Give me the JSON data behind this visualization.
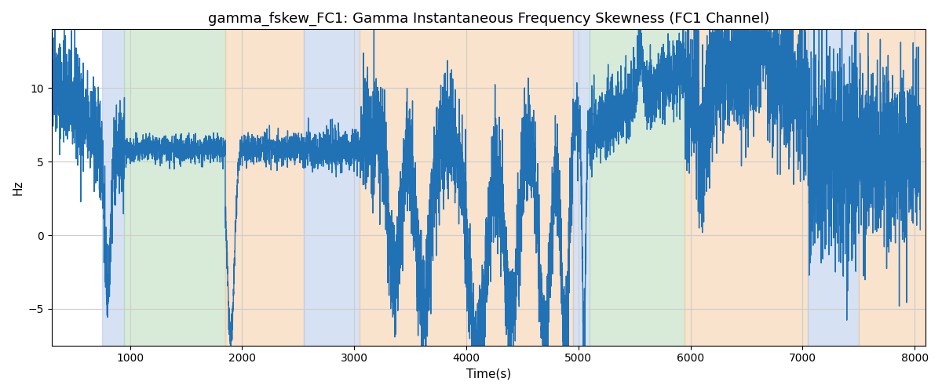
{
  "title": "gamma_fskew_FC1: Gamma Instantaneous Frequency Skewness (FC1 Channel)",
  "xlabel": "Time(s)",
  "ylabel": "Hz",
  "xlim": [
    300,
    8100
  ],
  "ylim": [
    -7.5,
    14
  ],
  "xticks": [
    1000,
    2000,
    3000,
    4000,
    5000,
    6000,
    7000,
    8000
  ],
  "yticks": [
    -5,
    0,
    5,
    10
  ],
  "line_color": "#2171b5",
  "line_width": 1.0,
  "background_color": "#ffffff",
  "grid_color": "#cccccc",
  "bands": [
    {
      "xmin": 750,
      "xmax": 950,
      "color": "#aec6e8",
      "alpha": 0.5
    },
    {
      "xmin": 950,
      "xmax": 1850,
      "color": "#b2d8b2",
      "alpha": 0.5
    },
    {
      "xmin": 1850,
      "xmax": 2550,
      "color": "#f5c99a",
      "alpha": 0.5
    },
    {
      "xmin": 2550,
      "xmax": 3050,
      "color": "#aec6e8",
      "alpha": 0.5
    },
    {
      "xmin": 3050,
      "xmax": 4950,
      "color": "#f5c99a",
      "alpha": 0.5
    },
    {
      "xmin": 4950,
      "xmax": 5100,
      "color": "#aec6e8",
      "alpha": 0.5
    },
    {
      "xmin": 5100,
      "xmax": 5950,
      "color": "#b2d8b2",
      "alpha": 0.5
    },
    {
      "xmin": 5950,
      "xmax": 7050,
      "color": "#f5c99a",
      "alpha": 0.5
    },
    {
      "xmin": 7050,
      "xmax": 7500,
      "color": "#aec6e8",
      "alpha": 0.5
    },
    {
      "xmin": 7500,
      "xmax": 8100,
      "color": "#f5c99a",
      "alpha": 0.5
    }
  ],
  "seed": 42
}
